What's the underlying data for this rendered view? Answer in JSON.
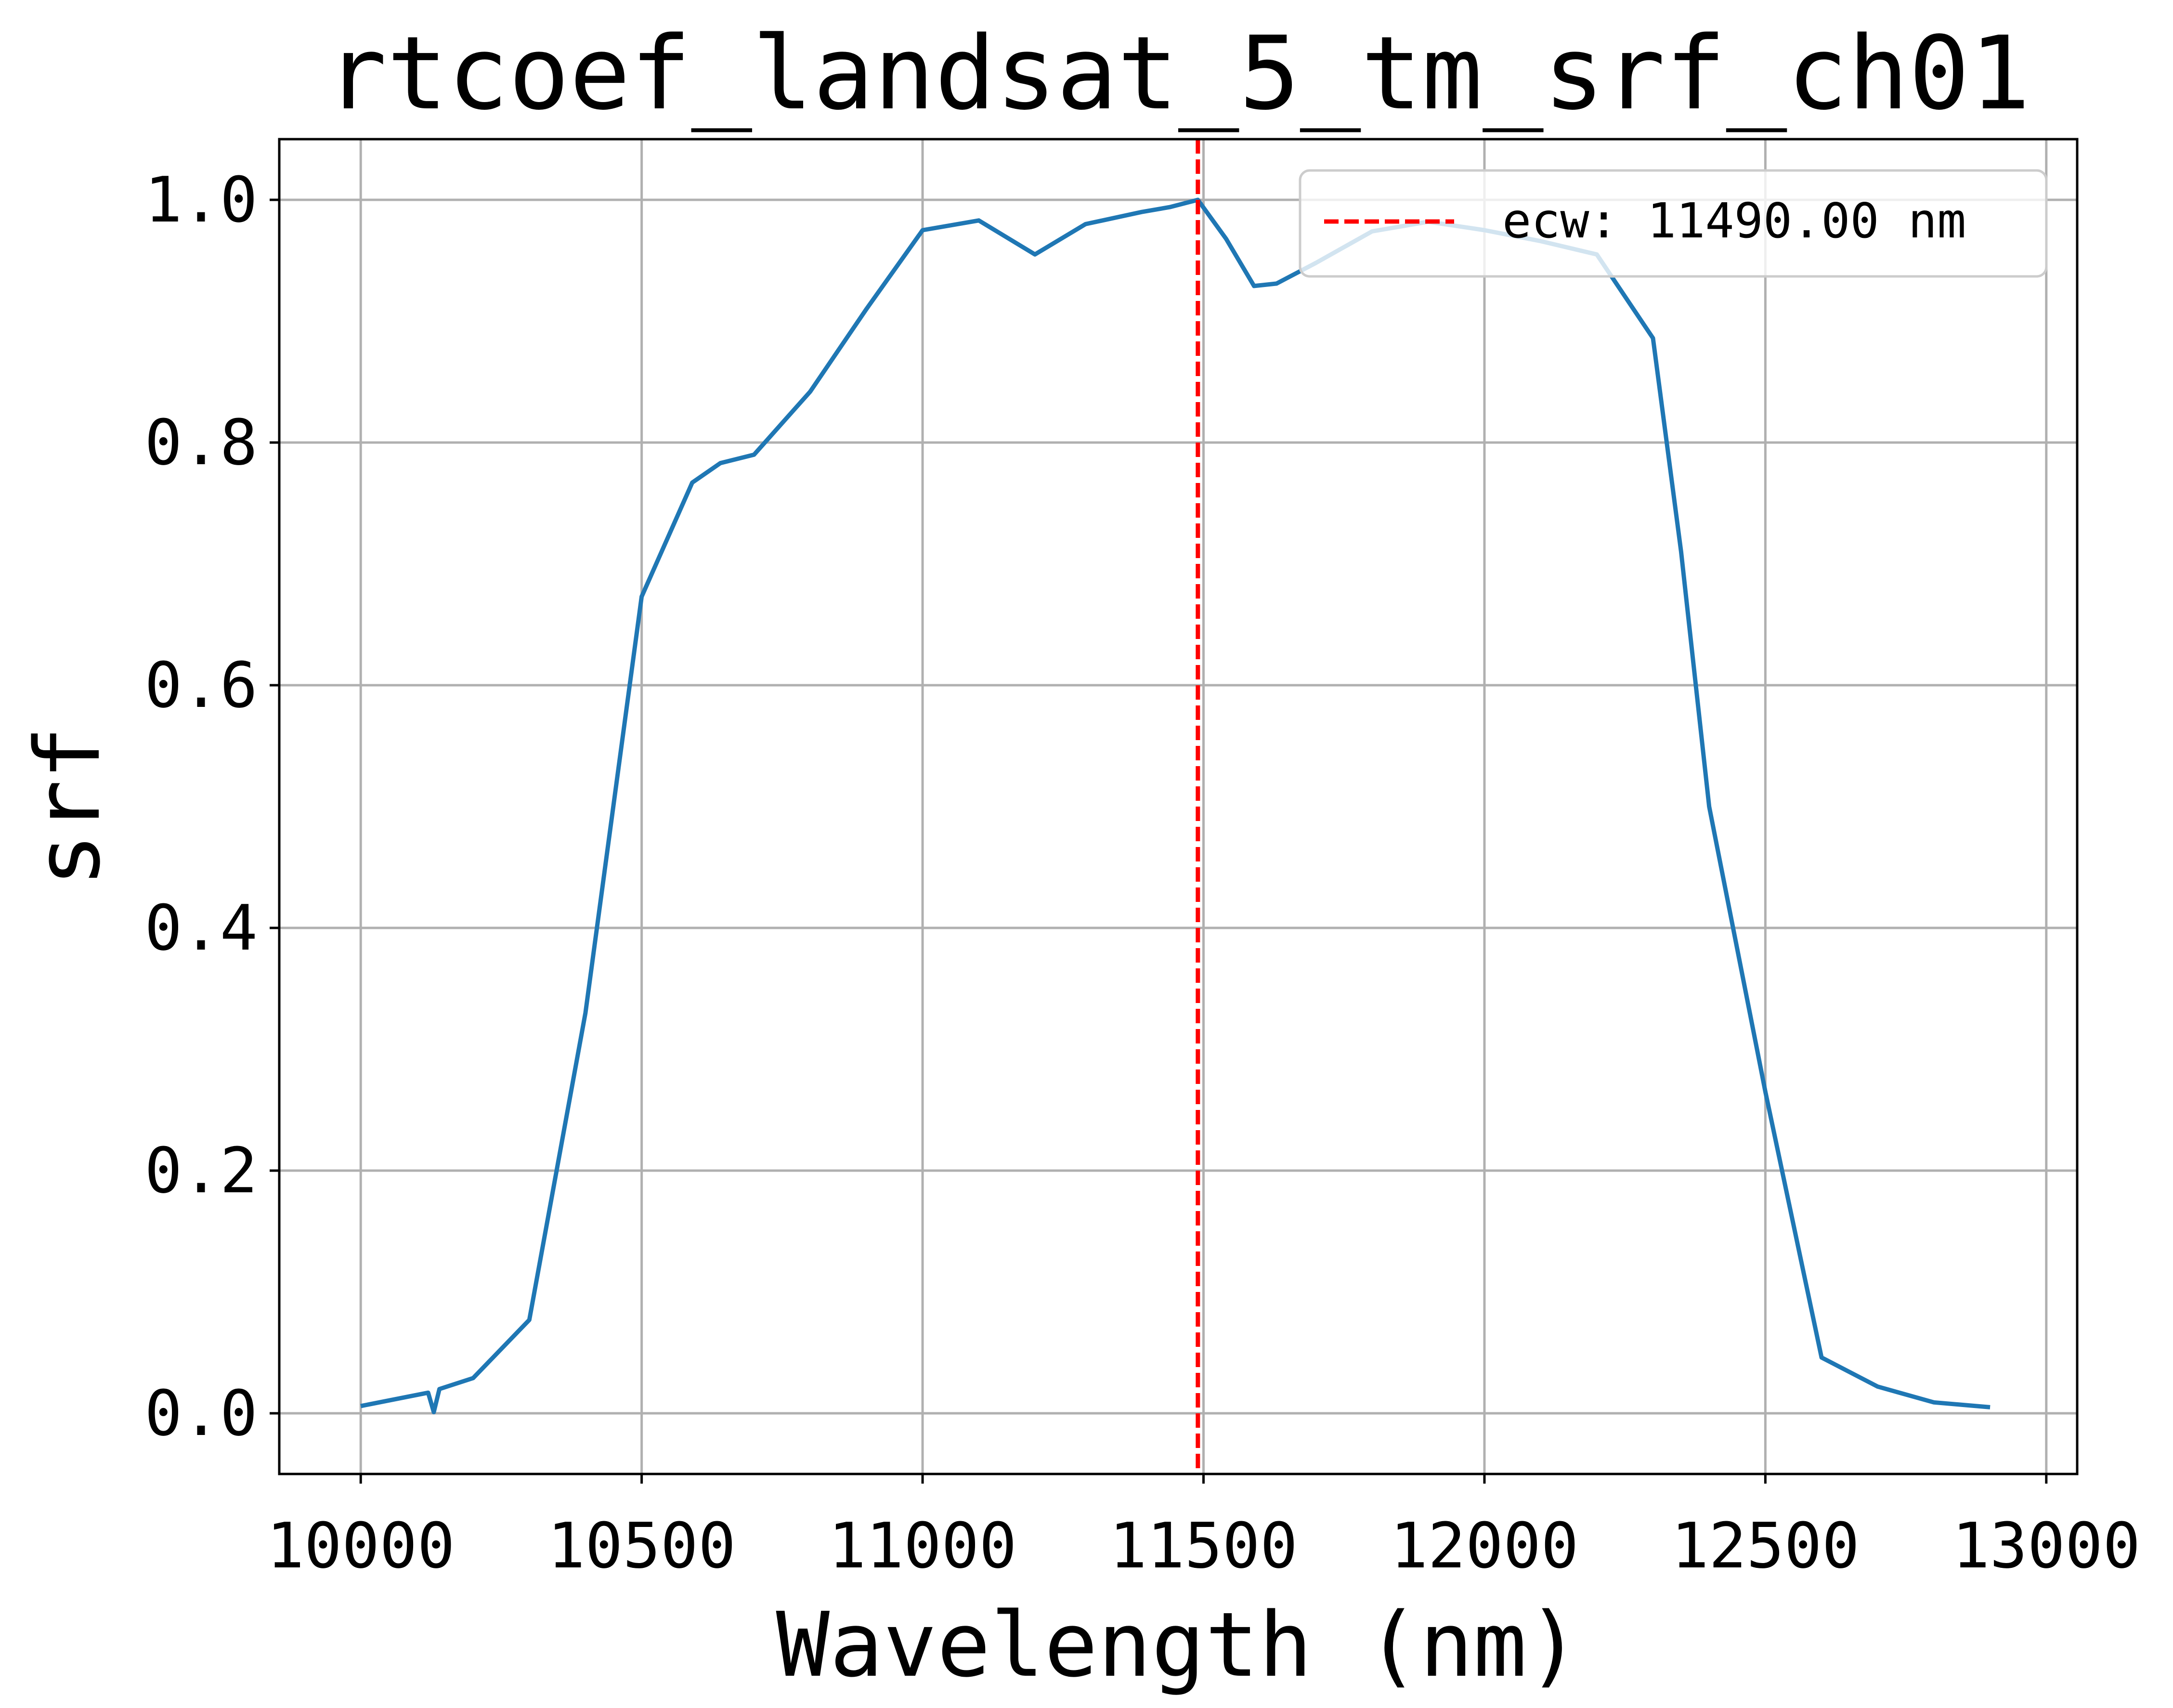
{
  "chart_data": {
    "type": "line",
    "title": "rtcoef_landsat_5_tm_srf_ch01",
    "xlabel": "Wavelength (nm)",
    "ylabel": "srf",
    "xlim": [
      9855,
      13055
    ],
    "ylim": [
      -0.05,
      1.05
    ],
    "xticks": [
      10000,
      10500,
      11000,
      11500,
      12000,
      12500,
      13000
    ],
    "yticks": [
      0.0,
      0.2,
      0.4,
      0.6,
      0.8,
      1.0
    ],
    "xtick_labels": [
      "10000",
      "10500",
      "11000",
      "11500",
      "12000",
      "12500",
      "13000"
    ],
    "ytick_labels": [
      "0.0",
      "0.2",
      "0.4",
      "0.6",
      "0.8",
      "1.0"
    ],
    "grid": true,
    "legend_position": "top-right",
    "series": [
      {
        "color": "#1f77b4",
        "x": [
          10000,
          10120,
          10130,
          10140,
          10200,
          10300,
          10400,
          10500,
          10590,
          10640,
          10700,
          10800,
          10900,
          11000,
          11100,
          11200,
          11290,
          11390,
          11440,
          11490,
          11540,
          11590,
          11630,
          11700,
          11800,
          11900,
          12000,
          12100,
          12200,
          12300,
          12350,
          12400,
          12500,
          12600,
          12700,
          12800,
          12900
        ],
        "y": [
          0.006,
          0.017,
          0.001,
          0.02,
          0.029,
          0.077,
          0.33,
          0.673,
          0.767,
          0.783,
          0.79,
          0.842,
          0.91,
          0.975,
          0.983,
          0.955,
          0.98,
          0.99,
          0.994,
          1.0,
          0.968,
          0.929,
          0.931,
          0.948,
          0.974,
          0.982,
          0.975,
          0.966,
          0.955,
          0.886,
          0.71,
          0.5,
          0.265,
          0.046,
          0.022,
          0.009,
          0.005
        ]
      }
    ],
    "vline": {
      "x": 11490,
      "color": "#ff0000",
      "style": "dashed",
      "label": "ecw: 11490.00 nm"
    }
  }
}
